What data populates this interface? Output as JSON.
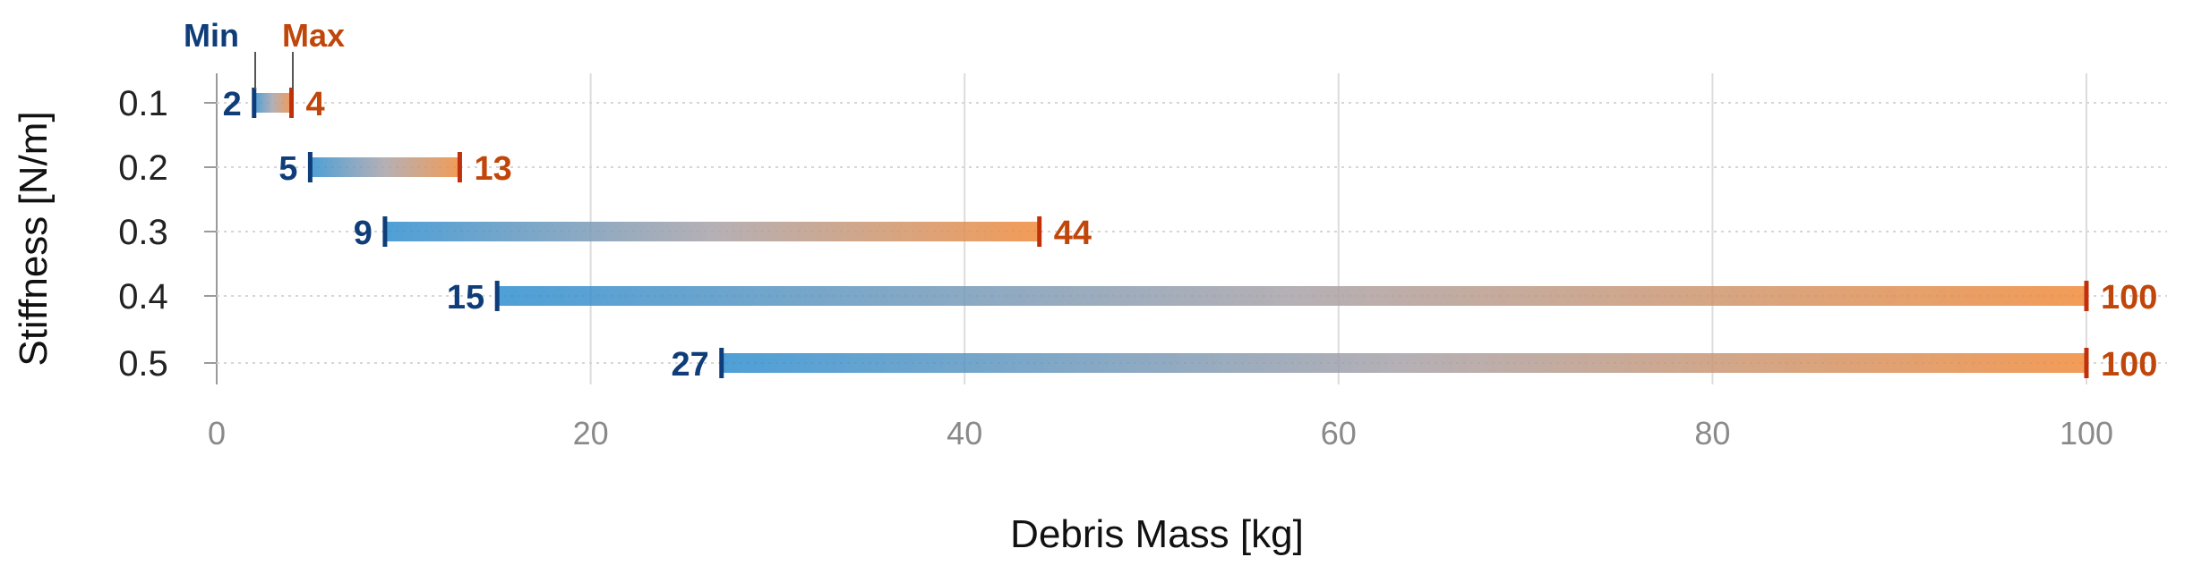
{
  "chart_data": {
    "type": "range-bar",
    "xlabel": "Debris Mass [kg]",
    "ylabel": "Stiffness [N/m]",
    "xlim": [
      0,
      100
    ],
    "x_ticks": [
      "0",
      "20",
      "40",
      "60",
      "80",
      "100"
    ],
    "grid": true,
    "legend": {
      "min_label": "Min",
      "max_label": "Max",
      "placement": "top-left"
    },
    "colors": {
      "min": "#2f8fd0",
      "max": "#f08a3a",
      "min_text": "#0f3d7a",
      "max_text": "#c0460a"
    },
    "categories": [
      "0.1",
      "0.2",
      "0.3",
      "0.4",
      "0.5"
    ],
    "series": [
      {
        "name": "Min",
        "values": [
          2,
          5,
          9,
          15,
          27
        ]
      },
      {
        "name": "Max",
        "values": [
          4,
          13,
          44,
          100,
          100
        ]
      }
    ]
  }
}
